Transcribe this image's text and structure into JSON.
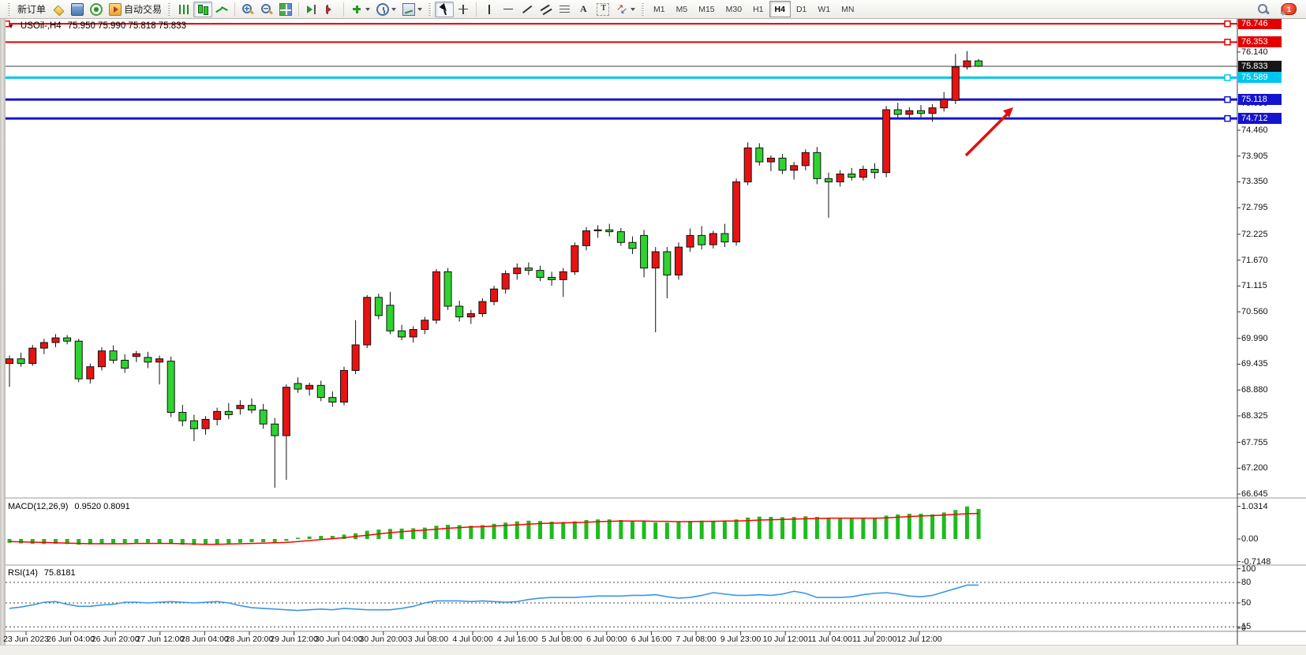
{
  "toolbar": {
    "groups": [
      {
        "name": "trade",
        "grip": true,
        "items": [
          {
            "name": "new-order-button",
            "label": "新订单"
          },
          {
            "name": "charts-grid-button",
            "icon": "gold-stack-icon"
          },
          {
            "name": "market-watch-button",
            "icon": "terminal-icon"
          },
          {
            "name": "signals-button",
            "icon": "signal-icon"
          },
          {
            "name": "autotrade-button",
            "icon": "autotrade-icon",
            "label": "自动交易"
          }
        ]
      },
      {
        "name": "chart-type",
        "grip": true,
        "items": [
          {
            "name": "bar-chart-button",
            "icon": "bar-chart-icon"
          },
          {
            "name": "candle-chart-button",
            "icon": "candle-chart-icon",
            "active": true
          },
          {
            "name": "line-chart-button",
            "icon": "line-chart-icon"
          }
        ]
      },
      {
        "name": "zoom",
        "sep": true,
        "items": [
          {
            "name": "zoom-in-button",
            "icon": "zoom-in-icon"
          },
          {
            "name": "zoom-out-button",
            "icon": "zoom-out-icon"
          },
          {
            "name": "tile-windows-button",
            "icon": "tile-windows-icon"
          }
        ]
      },
      {
        "name": "scroll",
        "sep": true,
        "items": [
          {
            "name": "auto-scroll-button",
            "icon": "auto-scroll-icon"
          },
          {
            "name": "chart-shift-button",
            "icon": "chart-shift-icon"
          }
        ]
      },
      {
        "name": "objects",
        "sep": true,
        "items": [
          {
            "name": "indicators-button",
            "icon": "add-indicator-icon",
            "dropdown": true
          },
          {
            "name": "periods-button",
            "icon": "clock-icon",
            "dropdown": true
          },
          {
            "name": "templates-button",
            "icon": "template-icon",
            "dropdown": true
          }
        ]
      },
      {
        "name": "pointer",
        "grip": true,
        "items": [
          {
            "name": "cursor-button",
            "icon": "cursor-icon",
            "active": true
          },
          {
            "name": "crosshair-button",
            "icon": "crosshair-icon"
          }
        ]
      },
      {
        "name": "line-studies",
        "sep": true,
        "items": [
          {
            "name": "vertical-line-button",
            "icon": "vline-icon"
          },
          {
            "name": "horizontal-line-button",
            "icon": "hline-icon"
          },
          {
            "name": "trendline-button",
            "icon": "trendline-icon"
          },
          {
            "name": "channel-button",
            "icon": "channel-icon"
          },
          {
            "name": "fibonacci-button",
            "icon": "fibonacci-icon"
          },
          {
            "name": "text-button",
            "icon": "text-a-icon"
          },
          {
            "name": "text-label-button",
            "icon": "text-label-icon"
          },
          {
            "name": "arrows-button",
            "icon": "shapes-icon",
            "dropdown": true
          }
        ]
      }
    ],
    "timeframes": [
      "M1",
      "M5",
      "M15",
      "M30",
      "H1",
      "H4",
      "D1",
      "W1",
      "MN"
    ],
    "active_timeframe": "H4",
    "right": {
      "search_name": "search-button",
      "chat_name": "notifications-button",
      "badge": "1"
    }
  },
  "window": {
    "title_symbol": "USOil-,H4",
    "title_ohlc": "75.950 75.990 75.818 75.833",
    "symbol_menu_glyph": "▼"
  },
  "indicators": {
    "macd": {
      "label": "MACD(12,26,9)",
      "values": "0.9520 0.8091",
      "axis": [
        "1.0314",
        "0.00",
        "-0.7148"
      ]
    },
    "rsi": {
      "label": "RSI(14)",
      "value": "75.8181",
      "axis": [
        "100",
        "80",
        "50",
        "15",
        "0"
      ],
      "level_lines": [
        80,
        50,
        15
      ]
    }
  },
  "chart_data": {
    "type": "candlestick",
    "symbol": "USOil-",
    "timeframe": "H4",
    "bull_color": "#e81212",
    "bear_color": "#2fd32f",
    "wick_color": "#111111",
    "current_price": 75.833,
    "price_ticks": [
      "76.710",
      "76.140",
      "75.030",
      "74.460",
      "73.905",
      "73.350",
      "72.795",
      "72.225",
      "71.670",
      "71.115",
      "70.560",
      "69.990",
      "69.435",
      "68.880",
      "68.325",
      "67.755",
      "67.200",
      "66.645"
    ],
    "boxed_price_labels": [
      {
        "value": "76.746",
        "bg": "#e30000"
      },
      {
        "value": "76.353",
        "bg": "#e30000"
      },
      {
        "value": "75.833",
        "bg": "#161616"
      },
      {
        "value": "75.589",
        "bg": "#00c6ef"
      },
      {
        "value": "75.118",
        "bg": "#1414cf"
      },
      {
        "value": "74.712",
        "bg": "#1414cf"
      }
    ],
    "level_lines": [
      {
        "price": 76.746,
        "color": "#e30000",
        "width": 2,
        "left_handle": true,
        "right_handle": true
      },
      {
        "price": 76.353,
        "color": "#e30000",
        "width": 2,
        "right_handle": true
      },
      {
        "price": 75.833,
        "color": "#3c3c3c",
        "width": 1,
        "is_price_line": true
      },
      {
        "price": 75.589,
        "color": "#00c6ef",
        "width": 3,
        "right_handle": true
      },
      {
        "price": 75.118,
        "color": "#1414cf",
        "width": 3,
        "right_handle": true
      },
      {
        "price": 74.712,
        "color": "#1414cf",
        "width": 3,
        "right_handle": true
      }
    ],
    "time_labels": [
      "23 Jun 2023",
      "26 Jun 04:00",
      "26 Jun 20:00",
      "27 Jun 12:00",
      "28 Jun 04:00",
      "28 Jun 20:00",
      "29 Jun 12:00",
      "30 Jun 04:00",
      "30 Jun 20:00",
      "3 Jul 08:00",
      "4 Jul 00:00",
      "4 Jul 16:00",
      "5 Jul 08:00",
      "6 Jul 00:00",
      "6 Jul 16:00",
      "7 Jul 08:00",
      "9 Jul 23:00",
      "10 Jul 12:00",
      "11 Jul 04:00",
      "11 Jul 20:00",
      "12 Jul 12:00"
    ],
    "candles": [
      [
        69.45,
        69.62,
        68.95,
        69.55
      ],
      [
        69.55,
        69.68,
        69.38,
        69.45
      ],
      [
        69.45,
        69.85,
        69.4,
        69.78
      ],
      [
        69.78,
        69.98,
        69.65,
        69.9
      ],
      [
        69.9,
        70.08,
        69.8,
        70.0
      ],
      [
        70.0,
        70.06,
        69.86,
        69.93
      ],
      [
        69.93,
        69.98,
        69.05,
        69.12
      ],
      [
        69.12,
        69.45,
        69.02,
        69.38
      ],
      [
        69.38,
        69.8,
        69.3,
        69.72
      ],
      [
        69.72,
        69.84,
        69.45,
        69.52
      ],
      [
        69.52,
        69.65,
        69.25,
        69.35
      ],
      [
        69.6,
        69.72,
        69.48,
        69.66
      ],
      [
        69.58,
        69.7,
        69.35,
        69.48
      ],
      [
        69.48,
        69.62,
        69.0,
        69.55
      ],
      [
        69.5,
        69.6,
        68.3,
        68.4
      ],
      [
        68.4,
        68.56,
        68.1,
        68.22
      ],
      [
        68.22,
        68.35,
        67.78,
        68.05
      ],
      [
        68.05,
        68.32,
        67.92,
        68.25
      ],
      [
        68.25,
        68.5,
        68.12,
        68.42
      ],
      [
        68.42,
        68.6,
        68.25,
        68.35
      ],
      [
        68.48,
        68.66,
        68.35,
        68.55
      ],
      [
        68.55,
        68.7,
        68.38,
        68.45
      ],
      [
        68.45,
        68.58,
        68.05,
        68.15
      ],
      [
        68.15,
        68.28,
        66.78,
        67.9
      ],
      [
        67.9,
        69.0,
        66.95,
        68.94
      ],
      [
        69.02,
        69.15,
        68.82,
        68.9
      ],
      [
        68.9,
        69.04,
        68.76,
        68.98
      ],
      [
        68.98,
        69.08,
        68.64,
        68.72
      ],
      [
        68.72,
        68.85,
        68.52,
        68.62
      ],
      [
        68.62,
        69.38,
        68.55,
        69.3
      ],
      [
        69.3,
        70.38,
        69.22,
        69.85
      ],
      [
        69.85,
        70.92,
        69.78,
        70.87
      ],
      [
        70.87,
        70.95,
        70.4,
        70.48
      ],
      [
        70.7,
        70.99,
        70.08,
        70.15
      ],
      [
        70.15,
        70.28,
        69.95,
        70.02
      ],
      [
        70.02,
        70.25,
        69.9,
        70.18
      ],
      [
        70.18,
        70.45,
        70.08,
        70.38
      ],
      [
        70.38,
        71.48,
        70.3,
        71.42
      ],
      [
        71.42,
        71.5,
        70.6,
        70.68
      ],
      [
        70.68,
        70.8,
        70.35,
        70.45
      ],
      [
        70.45,
        70.6,
        70.3,
        70.52
      ],
      [
        70.52,
        70.85,
        70.45,
        70.78
      ],
      [
        70.78,
        71.12,
        70.7,
        71.05
      ],
      [
        71.05,
        71.45,
        70.95,
        71.38
      ],
      [
        71.38,
        71.6,
        71.25,
        71.5
      ],
      [
        71.5,
        71.62,
        71.35,
        71.45
      ],
      [
        71.45,
        71.55,
        71.22,
        71.3
      ],
      [
        71.3,
        71.42,
        71.12,
        71.25
      ],
      [
        71.25,
        71.5,
        70.88,
        71.42
      ],
      [
        71.42,
        72.05,
        71.35,
        71.98
      ],
      [
        71.98,
        72.38,
        71.88,
        72.3
      ],
      [
        72.3,
        72.42,
        72.15,
        72.32
      ],
      [
        72.32,
        72.45,
        72.18,
        72.28
      ],
      [
        72.28,
        72.36,
        71.98,
        72.05
      ],
      [
        72.05,
        72.18,
        71.8,
        71.92
      ],
      [
        72.2,
        72.32,
        71.3,
        71.5
      ],
      [
        71.5,
        71.95,
        70.12,
        71.85
      ],
      [
        71.85,
        71.95,
        70.85,
        71.35
      ],
      [
        71.35,
        72.05,
        71.25,
        71.95
      ],
      [
        71.95,
        72.35,
        71.85,
        72.2
      ],
      [
        72.2,
        72.4,
        71.9,
        72.0
      ],
      [
        72.0,
        72.3,
        71.92,
        72.24
      ],
      [
        72.24,
        72.45,
        71.95,
        72.06
      ],
      [
        72.06,
        73.42,
        71.98,
        73.35
      ],
      [
        73.35,
        74.2,
        73.28,
        74.08
      ],
      [
        74.08,
        74.18,
        73.7,
        73.78
      ],
      [
        73.78,
        73.92,
        73.58,
        73.86
      ],
      [
        73.86,
        73.95,
        73.52,
        73.6
      ],
      [
        73.6,
        73.78,
        73.4,
        73.7
      ],
      [
        73.7,
        74.05,
        73.6,
        73.98
      ],
      [
        73.98,
        74.1,
        73.3,
        73.42
      ],
      [
        73.42,
        73.55,
        72.58,
        73.35
      ],
      [
        73.35,
        73.6,
        73.25,
        73.52
      ],
      [
        73.52,
        73.65,
        73.38,
        73.45
      ],
      [
        73.45,
        73.7,
        73.38,
        73.62
      ],
      [
        73.62,
        73.75,
        73.42,
        73.55
      ],
      [
        73.55,
        74.98,
        73.45,
        74.9
      ],
      [
        74.9,
        75.05,
        74.72,
        74.8
      ],
      [
        74.8,
        74.95,
        74.7,
        74.88
      ],
      [
        74.88,
        75.0,
        74.74,
        74.82
      ],
      [
        74.82,
        75.02,
        74.64,
        74.94
      ],
      [
        74.94,
        75.28,
        74.86,
        75.12
      ],
      [
        75.1,
        76.1,
        75.02,
        75.82
      ],
      [
        75.82,
        76.16,
        75.76,
        75.95
      ],
      [
        75.95,
        75.99,
        75.818,
        75.833
      ]
    ],
    "macd": {
      "hist_color": "#1dbb1d",
      "signal_color": "#ff0000",
      "histogram": [
        -0.12,
        -0.14,
        -0.15,
        -0.16,
        -0.15,
        -0.16,
        -0.18,
        -0.17,
        -0.15,
        -0.14,
        -0.13,
        -0.12,
        -0.12,
        -0.13,
        -0.16,
        -0.18,
        -0.19,
        -0.18,
        -0.16,
        -0.14,
        -0.12,
        -0.1,
        -0.1,
        -0.12,
        -0.06,
        0.04,
        0.08,
        0.1,
        0.1,
        0.14,
        0.18,
        0.26,
        0.3,
        0.32,
        0.33,
        0.34,
        0.36,
        0.42,
        0.45,
        0.44,
        0.42,
        0.44,
        0.48,
        0.52,
        0.56,
        0.58,
        0.57,
        0.55,
        0.54,
        0.56,
        0.6,
        0.62,
        0.62,
        0.6,
        0.58,
        0.55,
        0.52,
        0.52,
        0.54,
        0.57,
        0.58,
        0.58,
        0.56,
        0.62,
        0.68,
        0.71,
        0.7,
        0.69,
        0.7,
        0.72,
        0.7,
        0.66,
        0.64,
        0.64,
        0.66,
        0.66,
        0.74,
        0.78,
        0.8,
        0.8,
        0.78,
        0.84,
        0.92,
        1.0314,
        0.952
      ],
      "signal": [
        -0.08,
        -0.09,
        -0.1,
        -0.11,
        -0.12,
        -0.13,
        -0.14,
        -0.15,
        -0.15,
        -0.15,
        -0.15,
        -0.14,
        -0.14,
        -0.14,
        -0.14,
        -0.15,
        -0.16,
        -0.17,
        -0.17,
        -0.16,
        -0.15,
        -0.14,
        -0.13,
        -0.12,
        -0.11,
        -0.08,
        -0.05,
        -0.02,
        0.01,
        0.04,
        0.08,
        0.12,
        0.16,
        0.2,
        0.23,
        0.26,
        0.28,
        0.31,
        0.34,
        0.36,
        0.38,
        0.39,
        0.41,
        0.43,
        0.45,
        0.47,
        0.49,
        0.5,
        0.51,
        0.52,
        0.53,
        0.55,
        0.56,
        0.57,
        0.57,
        0.57,
        0.56,
        0.56,
        0.55,
        0.55,
        0.56,
        0.56,
        0.57,
        0.57,
        0.58,
        0.6,
        0.61,
        0.62,
        0.63,
        0.64,
        0.65,
        0.66,
        0.66,
        0.66,
        0.66,
        0.66,
        0.67,
        0.69,
        0.71,
        0.73,
        0.74,
        0.76,
        0.78,
        0.8,
        0.81
      ]
    },
    "rsi": {
      "color": "#3a96e8",
      "line": [
        42,
        44,
        47,
        51,
        52,
        48,
        45,
        45,
        47,
        48,
        51,
        51,
        50,
        51,
        52,
        51,
        50,
        51,
        52,
        50,
        46,
        43,
        42,
        41,
        40,
        39,
        40,
        41,
        40,
        42,
        41,
        40,
        40,
        40,
        42,
        45,
        50,
        53,
        53,
        53,
        52,
        53,
        52,
        51,
        52,
        55,
        57,
        58,
        58,
        58,
        59,
        60,
        60,
        60,
        61,
        61,
        62,
        59,
        57,
        58,
        61,
        65,
        63,
        61,
        61,
        62,
        61,
        63,
        67,
        64,
        58,
        58,
        58,
        59,
        62,
        64,
        65,
        63,
        60,
        59,
        61,
        66,
        71,
        76,
        76
      ]
    },
    "annotation_arrow": {
      "color": "#e01010",
      "tail": [
        1224,
        197
      ],
      "tip": [
        1284,
        136
      ]
    }
  }
}
